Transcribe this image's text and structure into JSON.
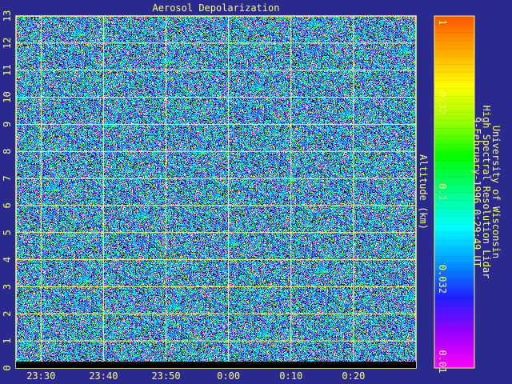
{
  "chart_data": {
    "type": "heatmap",
    "title": "Aerosol Depolarization",
    "ylabel": "Altitude (km)",
    "y_ticks": [
      "0",
      "1",
      "2",
      "3",
      "4",
      "5",
      "6",
      "7",
      "8",
      "9",
      "10",
      "11",
      "12",
      "13"
    ],
    "ylim": [
      0,
      13
    ],
    "x_ticks": [
      "23:30",
      "23:40",
      "23:50",
      "0:00",
      "0:10",
      "0:20"
    ],
    "x_tick_minutes": [
      -30,
      -20,
      -10,
      0,
      10,
      20
    ],
    "xlim_minutes": [
      -34,
      30
    ],
    "colorbar": {
      "scale": "log",
      "range": [
        0.01,
        1
      ],
      "ticks": [
        "1",
        "0.32",
        "0.1",
        "0.032",
        "0.01"
      ],
      "tick_values": [
        1,
        0.32,
        0.1,
        0.032,
        0.01
      ],
      "colormap": [
        "#ff00ff",
        "#9900ff",
        "#2020ff",
        "#0099ff",
        "#00ffff",
        "#00ff88",
        "#00ff00",
        "#99ff00",
        "#ffff00",
        "#ffaa00",
        "#ff5500"
      ]
    },
    "grid": true,
    "field_appearance": "speckled noise",
    "bottom_bar_color": "#000000"
  },
  "info": {
    "line1": "University of Wisconsin",
    "line2": "High Spectral Resolution Lidar",
    "line3": "9-February-1996  0:29:49 UT"
  },
  "colors": {
    "background": "#2a2a8e",
    "axis": "#ffff66",
    "text": "#ffff66"
  }
}
